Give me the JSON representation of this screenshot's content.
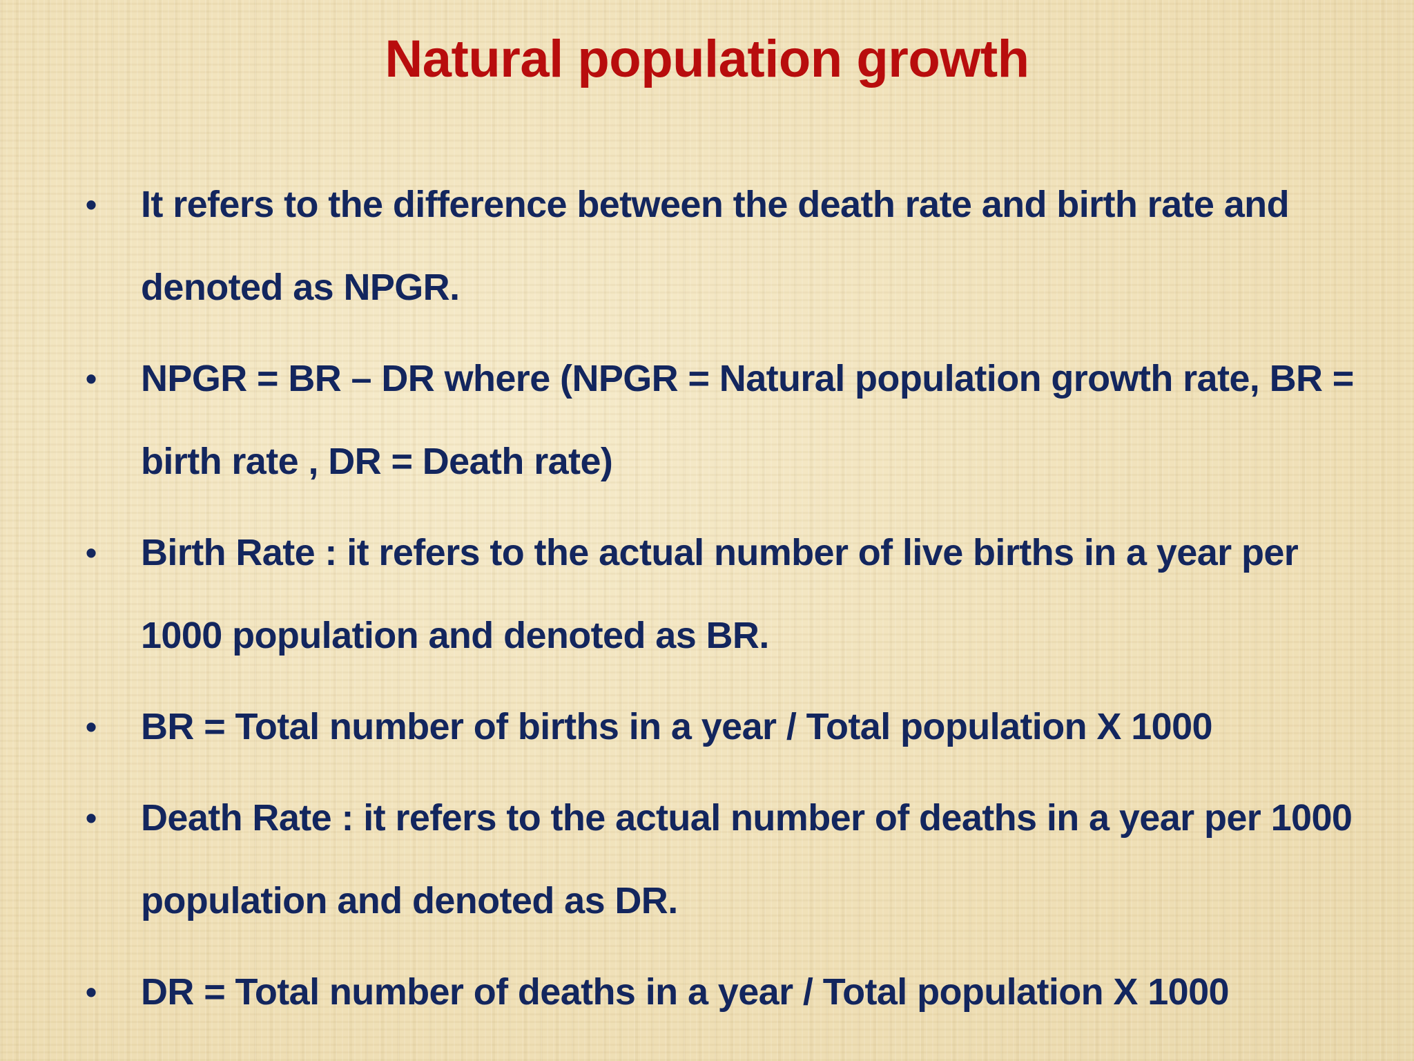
{
  "slide": {
    "title": "Natural population growth",
    "bullets": [
      {
        "marker": "•",
        "text": "It refers to the difference between the death rate and birth rate and denoted as NPGR."
      },
      {
        "marker": "•",
        "text": "NPGR = BR – DR where (NPGR = Natural population growth rate, BR = birth rate , DR = Death rate)"
      },
      {
        "marker": "•",
        "text": "Birth Rate : it refers to the actual number of live births in a year per 1000 population and denoted as BR."
      },
      {
        "marker": "•",
        "text": "BR = Total number of births in a year / Total population X 1000"
      },
      {
        "marker": "•",
        "text": "Death Rate : it refers to the actual number of deaths in a year per 1000 population and denoted as DR."
      },
      {
        "marker": "•",
        "text": "DR = Total number of deaths in a year / Total population X 1000"
      }
    ],
    "colors": {
      "title": "#b80d0d",
      "body": "#13265e",
      "background": "#f2e4bf"
    }
  }
}
